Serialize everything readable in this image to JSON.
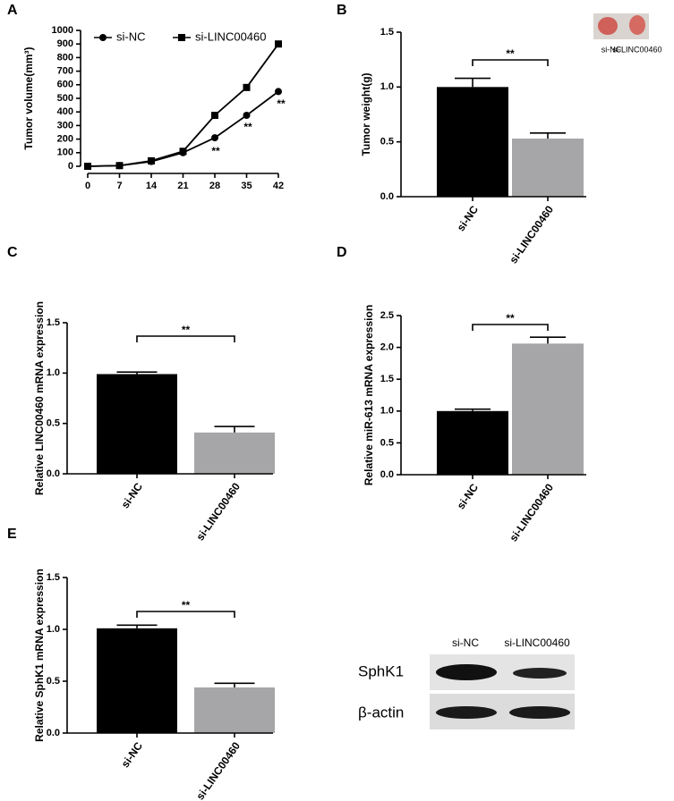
{
  "panel_labels": [
    "A",
    "B",
    "C",
    "D",
    "E"
  ],
  "chart_data": [
    {
      "type": "line",
      "y_label": "Tumor volume(mm³)",
      "x": [
        0,
        7,
        14,
        21,
        28,
        35,
        42
      ],
      "series": [
        {
          "name": "si-NC",
          "color": "#000000",
          "marker": "circle",
          "values": [
            0,
            5,
            35,
            100,
            210,
            375,
            550
          ]
        },
        {
          "name": "si-LINC00460",
          "color": "#000000",
          "marker": "square",
          "values": [
            0,
            5,
            40,
            110,
            375,
            580,
            900
          ]
        }
      ],
      "xlim": [
        0,
        42
      ],
      "xticks": [
        0,
        7,
        14,
        21,
        28,
        35,
        42
      ],
      "ylim": [
        0,
        1000
      ],
      "yticks": [
        0,
        100,
        200,
        300,
        400,
        500,
        600,
        700,
        800,
        900,
        1000
      ],
      "annotations": [
        "**",
        "**",
        "**"
      ]
    },
    {
      "type": "bar",
      "y_label": "Tumor weight(g)",
      "categories": [
        "si-NC",
        "si-LINC00460"
      ],
      "values": [
        1.0,
        0.53
      ],
      "errors": [
        0.08,
        0.05
      ],
      "colors": [
        "#000000",
        "#a6a6a8"
      ],
      "ylim": [
        0,
        1.5
      ],
      "yticks": [
        {
          "value": 0,
          "label": "0.0"
        },
        {
          "value": 0.5,
          "label": "0.5"
        },
        {
          "value": 1,
          "label": "1.0"
        },
        {
          "value": 1.5,
          "label": "1.5"
        }
      ],
      "significance": "**",
      "inset_labels": [
        "si-NC",
        "si-LINC00460"
      ]
    },
    {
      "type": "bar",
      "y_label": "Relative LINC00460 mRNA expression",
      "categories": [
        "si-NC",
        "si-LINC00460"
      ],
      "values": [
        0.99,
        0.41
      ],
      "errors": [
        0.02,
        0.06
      ],
      "colors": [
        "#000000",
        "#a6a6a8"
      ],
      "ylim": [
        0,
        1.5
      ],
      "yticks": [
        {
          "value": 0,
          "label": "0.0"
        },
        {
          "value": 0.5,
          "label": "0.5"
        },
        {
          "value": 1,
          "label": "1.0"
        },
        {
          "value": 1.5,
          "label": "1.5"
        }
      ],
      "significance": "**"
    },
    {
      "type": "bar",
      "y_label": "Relative miR-613 mRNA expression",
      "categories": [
        "si-NC",
        "si-LINC00460"
      ],
      "values": [
        1.0,
        2.06
      ],
      "errors": [
        0.03,
        0.1
      ],
      "colors": [
        "#000000",
        "#a6a6a8"
      ],
      "ylim": [
        0,
        2.5
      ],
      "yticks": [
        {
          "value": 0,
          "label": "0.0"
        },
        {
          "value": 0.5,
          "label": "0.5"
        },
        {
          "value": 1,
          "label": "1.0"
        },
        {
          "value": 1.5,
          "label": "1.5"
        },
        {
          "value": 2,
          "label": "2.0"
        },
        {
          "value": 2.5,
          "label": "2.5"
        }
      ],
      "significance": "**"
    },
    {
      "type": "bar",
      "y_label": "Relative SphK1 mRNA expression",
      "categories": [
        "si-NC",
        "si-LINC00460"
      ],
      "values": [
        1.01,
        0.44
      ],
      "errors": [
        0.03,
        0.04
      ],
      "colors": [
        "#000000",
        "#a6a6a8"
      ],
      "ylim": [
        0,
        1.5
      ],
      "yticks": [
        {
          "value": 0,
          "label": "0.0"
        },
        {
          "value": 0.5,
          "label": "0.5"
        },
        {
          "value": 1,
          "label": "1.0"
        },
        {
          "value": 1.5,
          "label": "1.5"
        }
      ],
      "significance": "**"
    }
  ],
  "blot": {
    "columns": [
      "si-NC",
      "si-LINC00460"
    ],
    "rows": [
      "SphK1",
      "β-actin"
    ]
  }
}
